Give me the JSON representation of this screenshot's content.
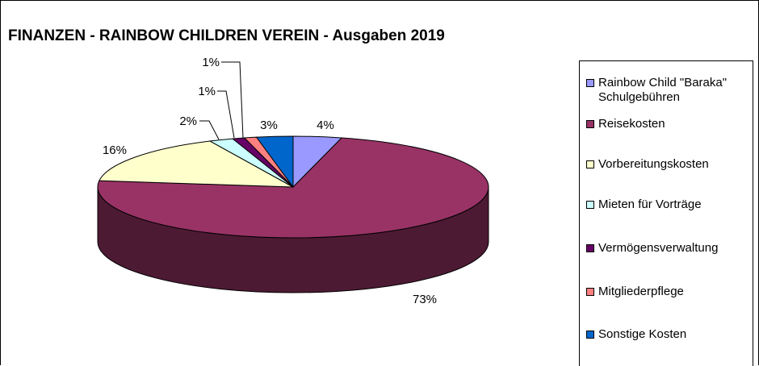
{
  "chart_data": {
    "type": "pie",
    "title": "FINANZEN - RAINBOW CHILDREN VEREIN - Ausgaben 2019",
    "three_d": true,
    "legend_position": "right",
    "slices": [
      {
        "label": "Rainbow Child \"Baraka\"\nSchulgebühren",
        "value": 4,
        "value_label": "4%",
        "color": "#9999ff"
      },
      {
        "label": "Reisekosten",
        "value": 73,
        "value_label": "73%",
        "color": "#993366"
      },
      {
        "label": "Vorbereitungskosten",
        "value": 16,
        "value_label": "16%",
        "color": "#ffffcc"
      },
      {
        "label": "Mieten für Vorträge",
        "value": 2,
        "value_label": "2%",
        "color": "#ccffff"
      },
      {
        "label": "Vermögensverwaltung",
        "value": 1,
        "value_label": "1%",
        "color": "#660066"
      },
      {
        "label": "Mitgliederpflege",
        "value": 1,
        "value_label": "1%",
        "color": "#ff8080"
      },
      {
        "label": "Sonstige Kosten",
        "value": 3,
        "value_label": "3%",
        "color": "#0066cc"
      }
    ]
  }
}
